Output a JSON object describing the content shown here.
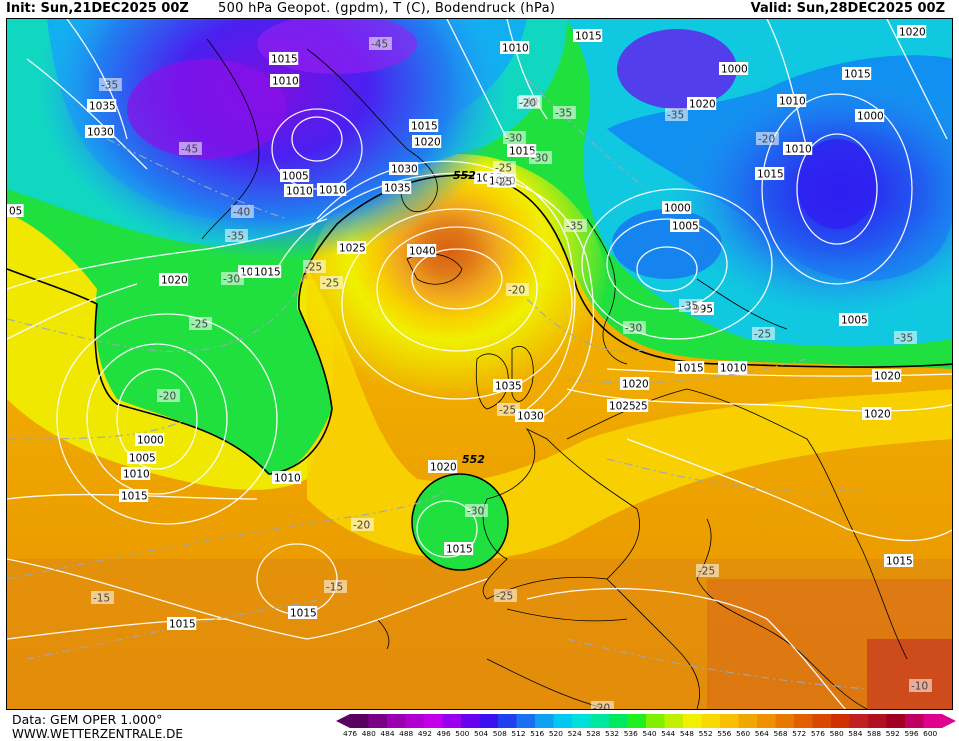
{
  "header": {
    "init": "Init: Sun,21DEC2025 00Z",
    "title": "500 hPa Geopot. (gpdm), T (C), Bodendruck (hPa)",
    "valid": "Valid: Sun,28DEC2025 00Z"
  },
  "footer": {
    "source": "Data: GEM OPER 1.000°",
    "site": "WWW.WETTERZENTRALE.DE"
  },
  "legend": {
    "values": [
      "476",
      "480",
      "484",
      "488",
      "492",
      "496",
      "500",
      "504",
      "508",
      "512",
      "516",
      "520",
      "524",
      "528",
      "532",
      "536",
      "540",
      "544",
      "548",
      "552",
      "556",
      "560",
      "564",
      "568",
      "572",
      "576",
      "580",
      "584",
      "588",
      "592",
      "596",
      "600"
    ],
    "colors": [
      "#5a0060",
      "#7a0088",
      "#9a00b0",
      "#b000d0",
      "#c000e8",
      "#9a00f0",
      "#6a00f0",
      "#3a10f0",
      "#2040f0",
      "#1a70f0",
      "#10a0f0",
      "#00c8f0",
      "#00e0d8",
      "#00e8a0",
      "#00e860",
      "#20f020",
      "#80f000",
      "#c0f000",
      "#f0f000",
      "#f8d800",
      "#f8c000",
      "#f0a800",
      "#f09000",
      "#e87800",
      "#e06000",
      "#d84800",
      "#d03000",
      "#c02020",
      "#b01020",
      "#a00020",
      "#c00060",
      "#e00090"
    ]
  },
  "map": {
    "pressure_labels": [
      "1015",
      "1010",
      "1015",
      "1010",
      "1000",
      "1035",
      "1030",
      "1015",
      "1020",
      "1010",
      "1005",
      "1010",
      "1030",
      "1035",
      "1025",
      "1040",
      "1025",
      "1020",
      "1015",
      "1015",
      "1000",
      "1005",
      "1010",
      "1015",
      "1010",
      "1020",
      "1015",
      "1020",
      "1035",
      "1030",
      "1025",
      "1020",
      "1000",
      "995",
      "1005",
      "1010",
      "1015",
      "1020",
      "1015",
      "1020",
      "1015",
      "1020",
      "1010",
      "1015",
      "1020",
      "1010",
      "1005",
      "1000",
      "1015",
      "1015",
      "1025",
      "1015",
      "05"
    ],
    "temp_labels": [
      "-45",
      "-35",
      "-45",
      "-40",
      "-35",
      "-30",
      "-25",
      "-25",
      "-25",
      "-20",
      "-20",
      "-25",
      "-35",
      "-30",
      "-30",
      "-25",
      "-35",
      "-40",
      "-35",
      "-20",
      "-30",
      "-25",
      "-20",
      "-15",
      "-15",
      "-10",
      "-25",
      "-20",
      "-35",
      "-25",
      "-20",
      "-30",
      "-35",
      "-25"
    ],
    "geopot_labels": [
      "552",
      "552"
    ]
  }
}
